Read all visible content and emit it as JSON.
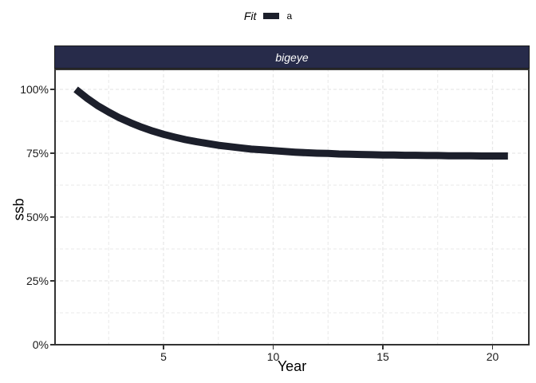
{
  "legend": {
    "title": "Fit",
    "items": [
      {
        "label": "a",
        "color": "#1c1f2b"
      }
    ]
  },
  "facet": {
    "label": "bigeye"
  },
  "axes": {
    "x": {
      "title": "Year",
      "ticks": [
        {
          "label": "5",
          "value": 5
        },
        {
          "label": "10",
          "value": 10
        },
        {
          "label": "15",
          "value": 15
        },
        {
          "label": "20",
          "value": 20
        }
      ],
      "gridlines": [
        2.5,
        5,
        7.5,
        10,
        12.5,
        15,
        17.5,
        20
      ]
    },
    "y": {
      "title": "ssb",
      "ticks": [
        {
          "label": "0%",
          "value": 0
        },
        {
          "label": "25%",
          "value": 25
        },
        {
          "label": "50%",
          "value": 50
        },
        {
          "label": "75%",
          "value": 75
        },
        {
          "label": "100%",
          "value": 100
        }
      ],
      "gridlines": [
        12.5,
        25,
        37.5,
        50,
        62.5,
        75,
        87.5,
        100
      ]
    }
  },
  "colors": {
    "strip_background": "#272b4a",
    "strip_text": "#ffffff",
    "panel_border": "#333333",
    "gridline": "#e8e8e8",
    "line": "#1c1f2b",
    "tick_text": "#1a1a1a"
  },
  "chart_data": {
    "type": "line",
    "title": "bigeye",
    "legend_title": "Fit",
    "xlabel": "Year",
    "ylabel": "ssb",
    "y_unit": "percent",
    "xlim": [
      0.1,
      21.7
    ],
    "ylim": [
      0,
      108
    ],
    "grid": "dashed major and minor, light gray",
    "legend_position": "top center",
    "series": [
      {
        "name": "a",
        "color": "#1c1f2b",
        "stroke_width": 9,
        "points": [
          [
            1.0,
            100.0
          ],
          [
            1.5,
            96.6
          ],
          [
            2.0,
            93.6
          ],
          [
            2.5,
            91.1
          ],
          [
            3.0,
            88.8
          ],
          [
            3.5,
            86.9
          ],
          [
            4.0,
            85.2
          ],
          [
            4.5,
            83.7
          ],
          [
            5.0,
            82.4
          ],
          [
            5.5,
            81.3
          ],
          [
            6.0,
            80.3
          ],
          [
            6.5,
            79.5
          ],
          [
            7.0,
            78.8
          ],
          [
            7.5,
            78.1
          ],
          [
            8.0,
            77.6
          ],
          [
            8.5,
            77.1
          ],
          [
            9.0,
            76.6
          ],
          [
            9.5,
            76.3
          ],
          [
            10.0,
            76.0
          ],
          [
            10.5,
            75.7
          ],
          [
            11.0,
            75.4
          ],
          [
            11.5,
            75.2
          ],
          [
            12.0,
            75.0
          ],
          [
            12.5,
            74.9
          ],
          [
            13.0,
            74.7
          ],
          [
            13.5,
            74.6
          ],
          [
            14.0,
            74.5
          ],
          [
            14.5,
            74.4
          ],
          [
            15.0,
            74.3
          ],
          [
            15.5,
            74.3
          ],
          [
            16.0,
            74.2
          ],
          [
            16.5,
            74.2
          ],
          [
            17.0,
            74.1
          ],
          [
            17.5,
            74.1
          ],
          [
            18.0,
            74.0
          ],
          [
            18.5,
            74.0
          ],
          [
            19.0,
            74.0
          ],
          [
            19.5,
            73.9
          ],
          [
            20.0,
            73.9
          ],
          [
            20.7,
            73.9
          ]
        ]
      }
    ]
  }
}
